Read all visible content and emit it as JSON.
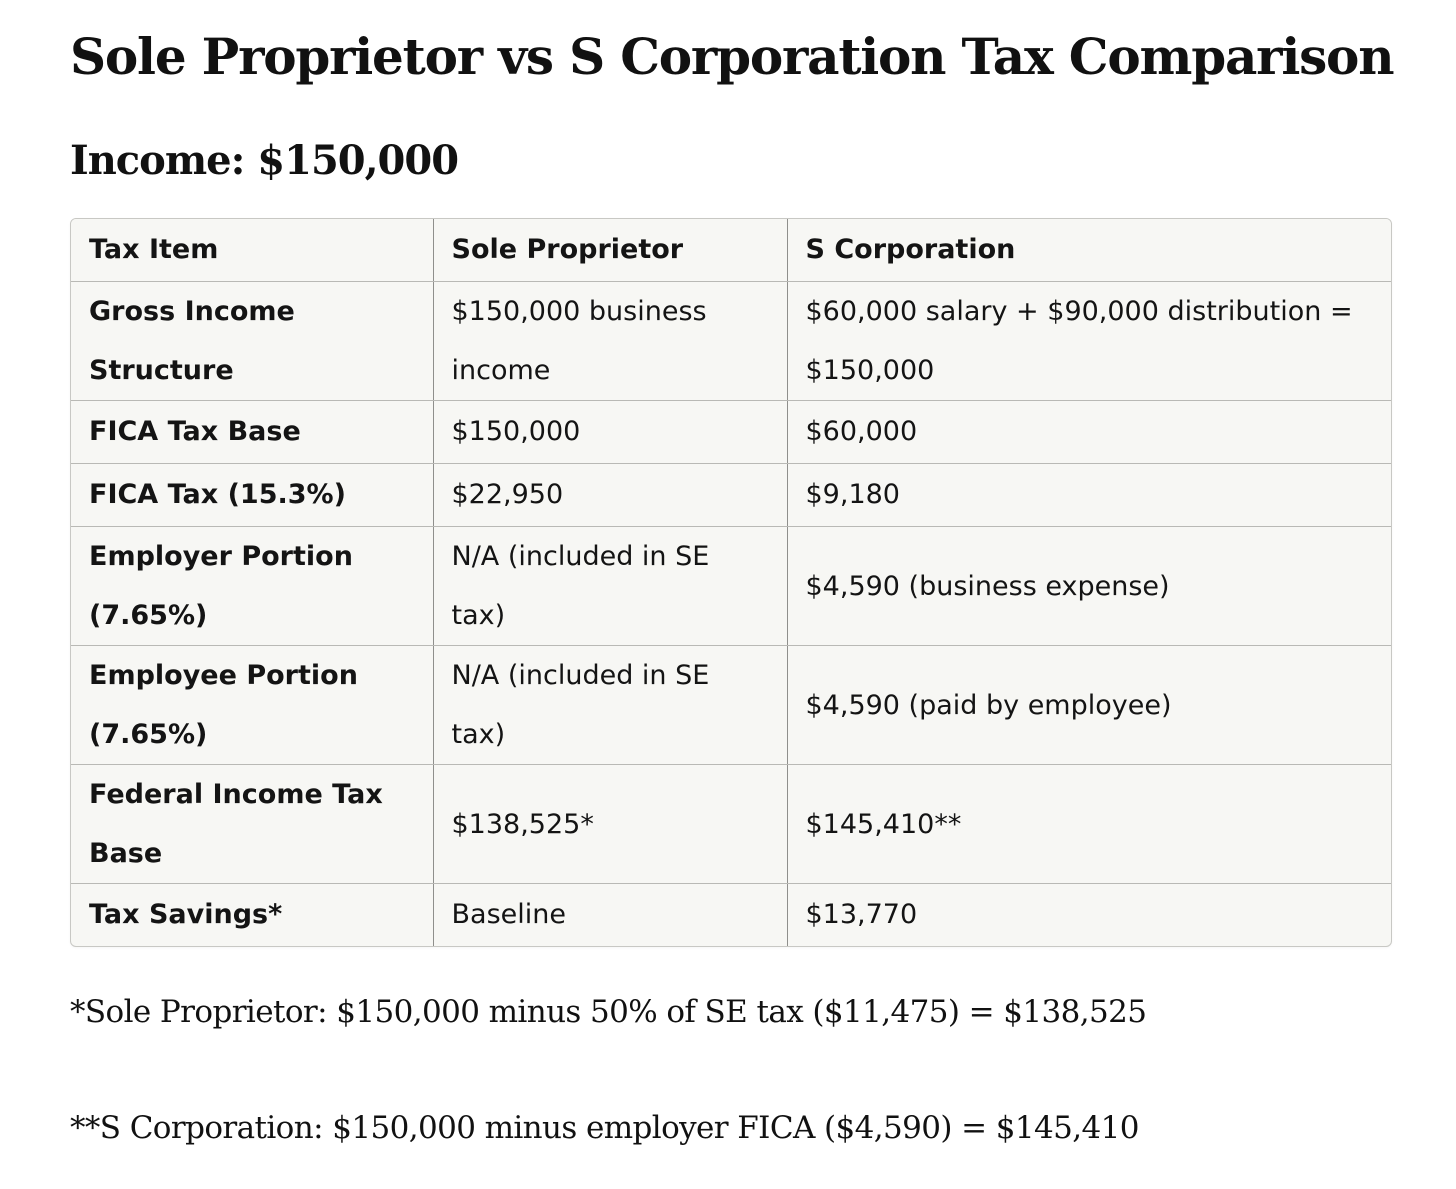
{
  "title": "Sole Proprietor vs S Corporation Tax Comparison",
  "subtitle": "Income: $150,000",
  "table": {
    "headers": [
      "Tax Item",
      "Sole Proprietor",
      "S Corporation"
    ],
    "rows": [
      {
        "item": "Gross Income Structure",
        "sole": "$150,000 business income",
        "scorp": "$60,000 salary + $90,000 distribution = $150,000"
      },
      {
        "item": "FICA Tax Base",
        "sole": "$150,000",
        "scorp": "$60,000"
      },
      {
        "item": "FICA Tax (15.3%)",
        "sole": "$22,950",
        "scorp": "$9,180"
      },
      {
        "item": "Employer Portion (7.65%)",
        "sole": "N/A (included in SE tax)",
        "scorp": "$4,590 (business expense)"
      },
      {
        "item": "Employee Portion (7.65%)",
        "sole": "N/A (included in SE tax)",
        "scorp": "$4,590 (paid by employee)"
      },
      {
        "item": "Federal Income Tax Base",
        "sole": "$138,525*",
        "scorp": "$145,410**"
      },
      {
        "item": "Tax Savings*",
        "sole": "Baseline",
        "scorp": "$13,770"
      }
    ]
  },
  "footnotes": [
    "*Sole Proprietor: $150,000 minus 50% of SE tax ($11,475) = $138,525",
    "**S Corporation: $150,000 minus employer FICA ($4,590) = $145,410"
  ]
}
